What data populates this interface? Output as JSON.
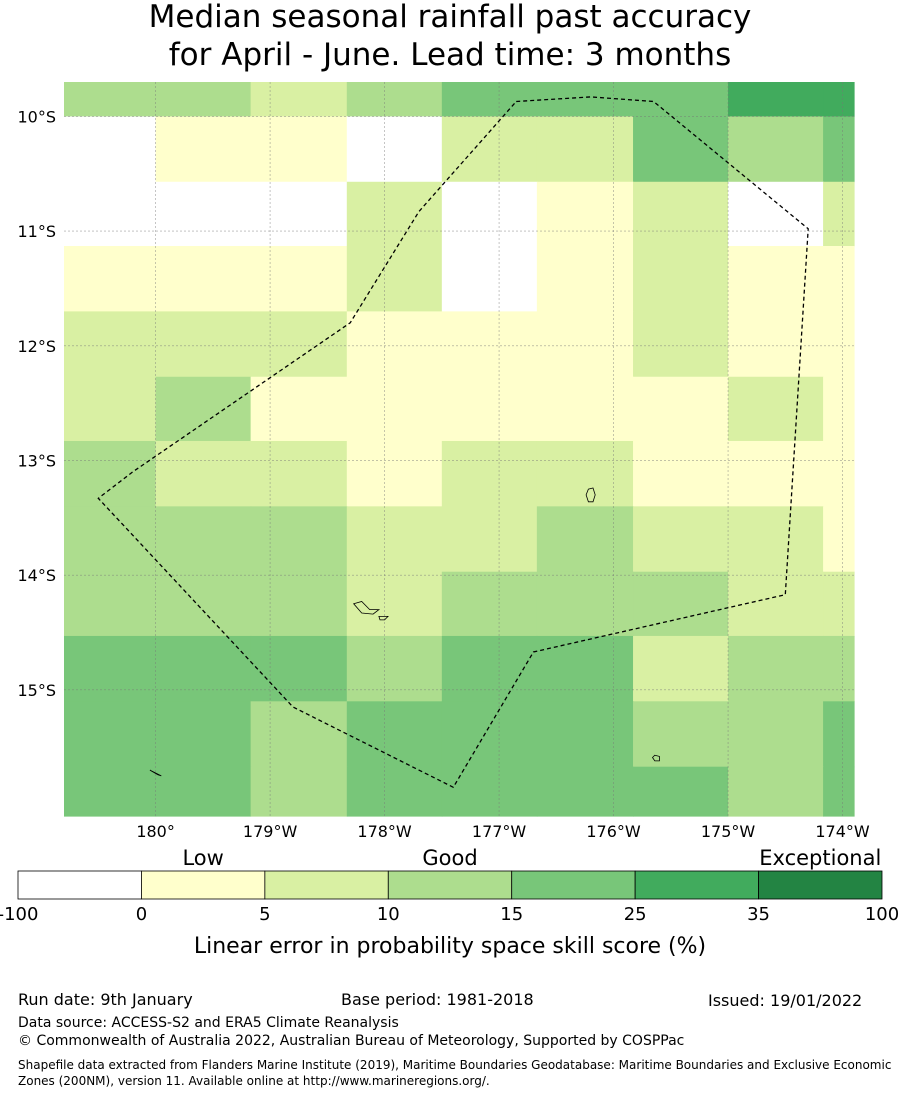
{
  "title": {
    "line1": "Median seasonal rainfall past accuracy",
    "line2": "for April - June. Lead time: 3 months"
  },
  "map": {
    "lon_range": [
      -180.8,
      -173.9
    ],
    "lat_range": [
      -9.7,
      -16.1
    ],
    "lon_ticks": [
      {
        "lon": -180,
        "label": "180°"
      },
      {
        "lon": -179,
        "label": "179°W"
      },
      {
        "lon": -178,
        "label": "178°W"
      },
      {
        "lon": -177,
        "label": "177°W"
      },
      {
        "lon": -176,
        "label": "176°W"
      },
      {
        "lon": -175,
        "label": "175°W"
      },
      {
        "lon": -174,
        "label": "174°W"
      }
    ],
    "lat_ticks": [
      {
        "lat": -10,
        "label": "10°S"
      },
      {
        "lat": -11,
        "label": "11°S"
      },
      {
        "lat": -12,
        "label": "12°S"
      },
      {
        "lat": -13,
        "label": "13°S"
      },
      {
        "lat": -14,
        "label": "14°S"
      },
      {
        "lat": -15,
        "label": "15°S"
      }
    ],
    "grid_lon_edges": [
      -180.8,
      -180.0,
      -179.17,
      -178.33,
      -177.5,
      -176.67,
      -175.83,
      -175.0,
      -174.17,
      -173.9
    ],
    "grid_lat_edges": [
      -9.7,
      -10.0,
      -10.57,
      -11.13,
      -11.7,
      -12.27,
      -12.83,
      -13.4,
      -13.97,
      -14.53,
      -15.1,
      -15.67,
      -16.1
    ],
    "class_grid": [
      [
        3,
        3,
        2,
        3,
        4,
        4,
        4,
        5,
        5
      ],
      [
        0,
        1,
        1,
        0,
        2,
        2,
        4,
        3,
        4
      ],
      [
        0,
        0,
        0,
        2,
        0,
        1,
        2,
        0,
        2
      ],
      [
        1,
        1,
        1,
        2,
        0,
        1,
        2,
        1,
        1
      ],
      [
        2,
        2,
        2,
        1,
        1,
        1,
        2,
        1,
        1
      ],
      [
        2,
        3,
        1,
        1,
        1,
        1,
        1,
        2,
        1
      ],
      [
        3,
        2,
        2,
        1,
        2,
        2,
        1,
        1,
        1
      ],
      [
        3,
        3,
        3,
        2,
        2,
        3,
        2,
        2,
        1
      ],
      [
        3,
        3,
        3,
        2,
        3,
        3,
        3,
        2,
        2
      ],
      [
        4,
        4,
        4,
        3,
        4,
        4,
        2,
        3,
        3
      ],
      [
        4,
        4,
        3,
        4,
        4,
        4,
        3,
        3,
        4
      ],
      [
        4,
        4,
        3,
        4,
        4,
        4,
        4,
        3,
        4
      ]
    ],
    "eez_boundary": [
      [
        -176.85,
        -9.87
      ],
      [
        -176.2,
        -9.83
      ],
      [
        -175.65,
        -9.87
      ],
      [
        -174.3,
        -10.98
      ],
      [
        -174.5,
        -14.17
      ],
      [
        -176.7,
        -14.67
      ],
      [
        -177.4,
        -15.85
      ],
      [
        -178.8,
        -15.15
      ],
      [
        -180.5,
        -13.33
      ],
      [
        -180.2,
        -13.1
      ],
      [
        -178.3,
        -11.8
      ],
      [
        -177.7,
        -10.83
      ],
      [
        -176.85,
        -9.87
      ]
    ],
    "islands": [
      {
        "name": "island-a",
        "poly": [
          [
            -176.22,
            -13.25
          ],
          [
            -176.18,
            -13.24
          ],
          [
            -176.16,
            -13.3
          ],
          [
            -176.18,
            -13.36
          ],
          [
            -176.22,
            -13.36
          ],
          [
            -176.24,
            -13.3
          ]
        ]
      },
      {
        "name": "island-b",
        "poly": [
          [
            -178.27,
            -14.25
          ],
          [
            -178.2,
            -14.23
          ],
          [
            -178.13,
            -14.3
          ],
          [
            -178.05,
            -14.3
          ],
          [
            -178.1,
            -14.34
          ],
          [
            -178.2,
            -14.33
          ]
        ]
      },
      {
        "name": "island-c",
        "poly": [
          [
            -178.05,
            -14.36
          ],
          [
            -177.97,
            -14.36
          ],
          [
            -178.0,
            -14.39
          ],
          [
            -178.04,
            -14.39
          ]
        ]
      },
      {
        "name": "island-d",
        "poly": [
          [
            -175.64,
            -15.57
          ],
          [
            -175.6,
            -15.58
          ],
          [
            -175.6,
            -15.62
          ],
          [
            -175.64,
            -15.62
          ],
          [
            -175.66,
            -15.59
          ]
        ]
      },
      {
        "name": "island-e",
        "poly": [
          [
            -180.05,
            -15.7
          ],
          [
            -179.95,
            -15.75
          ],
          [
            -179.98,
            -15.74
          ]
        ]
      }
    ]
  },
  "legend": {
    "category_labels": [
      {
        "label": "Low",
        "at": 1.5
      },
      {
        "label": "Good",
        "at": 3.5
      },
      {
        "label": "Exceptional",
        "at": 6.5
      }
    ],
    "boundaries": [
      "-100",
      "0",
      "5",
      "10",
      "15",
      "25",
      "35",
      "100"
    ],
    "colors": [
      "#ffffff",
      "#ffffcc",
      "#d9f0a3",
      "#addd8e",
      "#78c679",
      "#41ab5d",
      "#238443"
    ],
    "xlabel": "Linear error in probability space skill score (%)"
  },
  "footer": {
    "run_date": "Run date: 9th January",
    "base_period": "Base period: 1981-2018",
    "issued": "Issued: 19/01/2022",
    "data_source": "Data source: ACCESS-S2 and ERA5 Climate Reanalysis",
    "copyright": "© Commonwealth of Australia 2022, Australian Bureau of Meteorology, Supported by COSPPac",
    "shapefile": "Shapefile data extracted from Flanders Marine Institute (2019), Maritime Boundaries Geodatabase: Maritime Boundaries and Exclusive Economic Zones (200NM), version 11. Available online at http://www.marineregions.org/."
  }
}
